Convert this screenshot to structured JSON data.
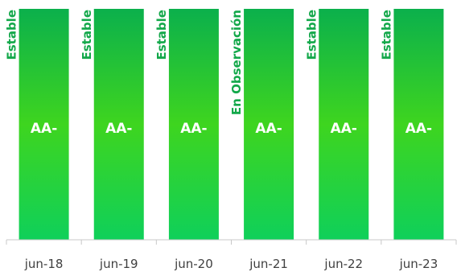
{
  "chart_data": {
    "type": "bar",
    "categories": [
      "jun-18",
      "jun-19",
      "jun-20",
      "jun-21",
      "jun-22",
      "jun-23"
    ],
    "ratings": [
      "AA-",
      "AA-",
      "AA-",
      "AA-",
      "AA-",
      "AA-"
    ],
    "outlooks": [
      "Estable",
      "Estable",
      "Estable",
      "En Observación",
      "Estable",
      "Estable"
    ],
    "colors": {
      "bar_top": "#0bb04c",
      "bar_bottom": "#0fd05a",
      "bar_mid": "#3ed51f",
      "outlook_text": "#13a84a",
      "axis": "#c8c8c8",
      "tick_text": "#404040"
    },
    "grid": false,
    "legend": "none"
  }
}
